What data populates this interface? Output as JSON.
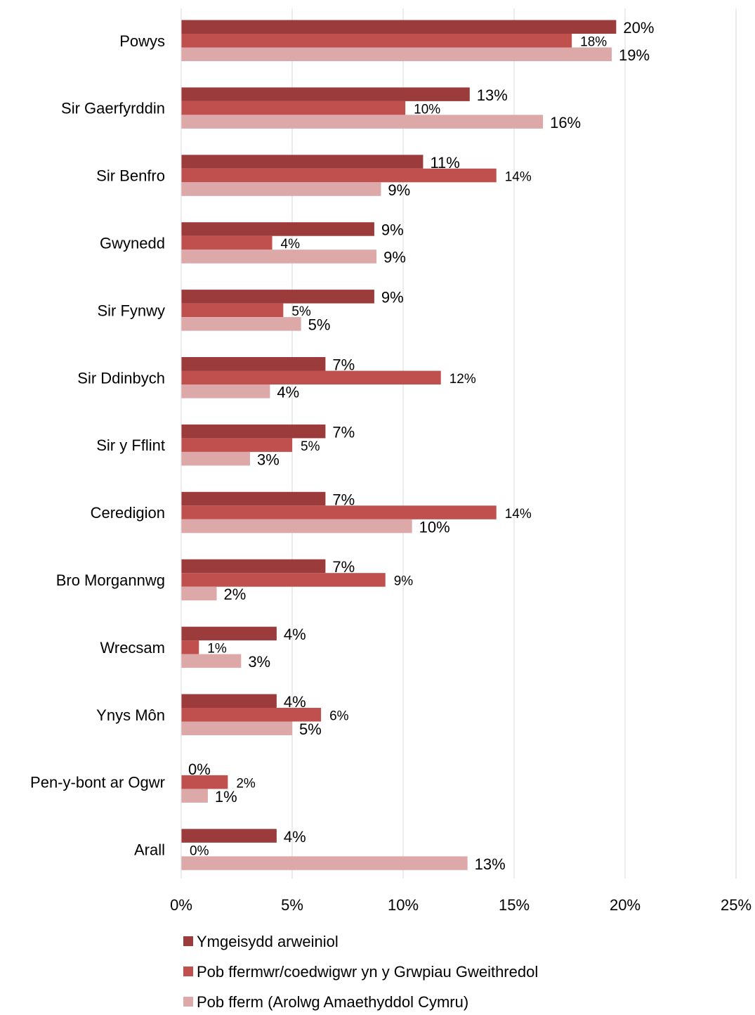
{
  "chart_data": {
    "type": "bar",
    "orientation": "horizontal",
    "categories": [
      "Powys",
      "Sir Gaerfyrddin",
      "Sir Benfro",
      "Gwynedd",
      "Sir Fynwy",
      "Sir Ddinbych",
      "Sir y Fflint",
      "Ceredigion",
      "Bro Morgannwg",
      "Wrecsam",
      "Ynys Môn",
      "Pen-y-bont ar Ogwr",
      "Arall"
    ],
    "series": [
      {
        "name": "Ymgeisydd arweiniol",
        "color": "#9b3b3b",
        "values": [
          19.6,
          13.0,
          10.9,
          8.7,
          8.7,
          6.5,
          6.5,
          6.5,
          6.5,
          4.3,
          4.3,
          0,
          4.3
        ],
        "labels": [
          "20%",
          "13%",
          "11%",
          "9%",
          "9%",
          "7%",
          "7%",
          "7%",
          "7%",
          "4%",
          "4%",
          "0%",
          "4%"
        ]
      },
      {
        "name": "Pob ffermwr/coedwigwr yn y Grwpiau Gweithredol",
        "color": "#c0504d",
        "values": [
          17.6,
          10.1,
          14.2,
          4.1,
          4.6,
          11.7,
          5.0,
          14.2,
          9.2,
          0.8,
          6.3,
          2.1,
          0
        ],
        "labels": [
          "18%",
          "10%",
          "14%",
          "4%",
          "5%",
          "12%",
          "5%",
          "14%",
          "9%",
          "1%",
          "6%",
          "2%",
          "0%"
        ]
      },
      {
        "name": "Pob fferm (Arolwg Amaethyddol Cymru)",
        "color": "#dca8a8",
        "values": [
          19.4,
          16.3,
          9.0,
          8.8,
          5.4,
          4.0,
          3.1,
          10.4,
          1.6,
          2.7,
          5.0,
          1.2,
          12.9
        ],
        "labels": [
          "19%",
          "16%",
          "9%",
          "9%",
          "5%",
          "4%",
          "3%",
          "10%",
          "2%",
          "3%",
          "5%",
          "1%",
          "13%"
        ]
      }
    ],
    "xlim": [
      0,
      25
    ],
    "x_ticks": [
      "0%",
      "5%",
      "10%",
      "15%",
      "20%",
      "25%"
    ],
    "grid": true,
    "legend_position": "bottom",
    "title": "",
    "xlabel": "",
    "ylabel": ""
  }
}
